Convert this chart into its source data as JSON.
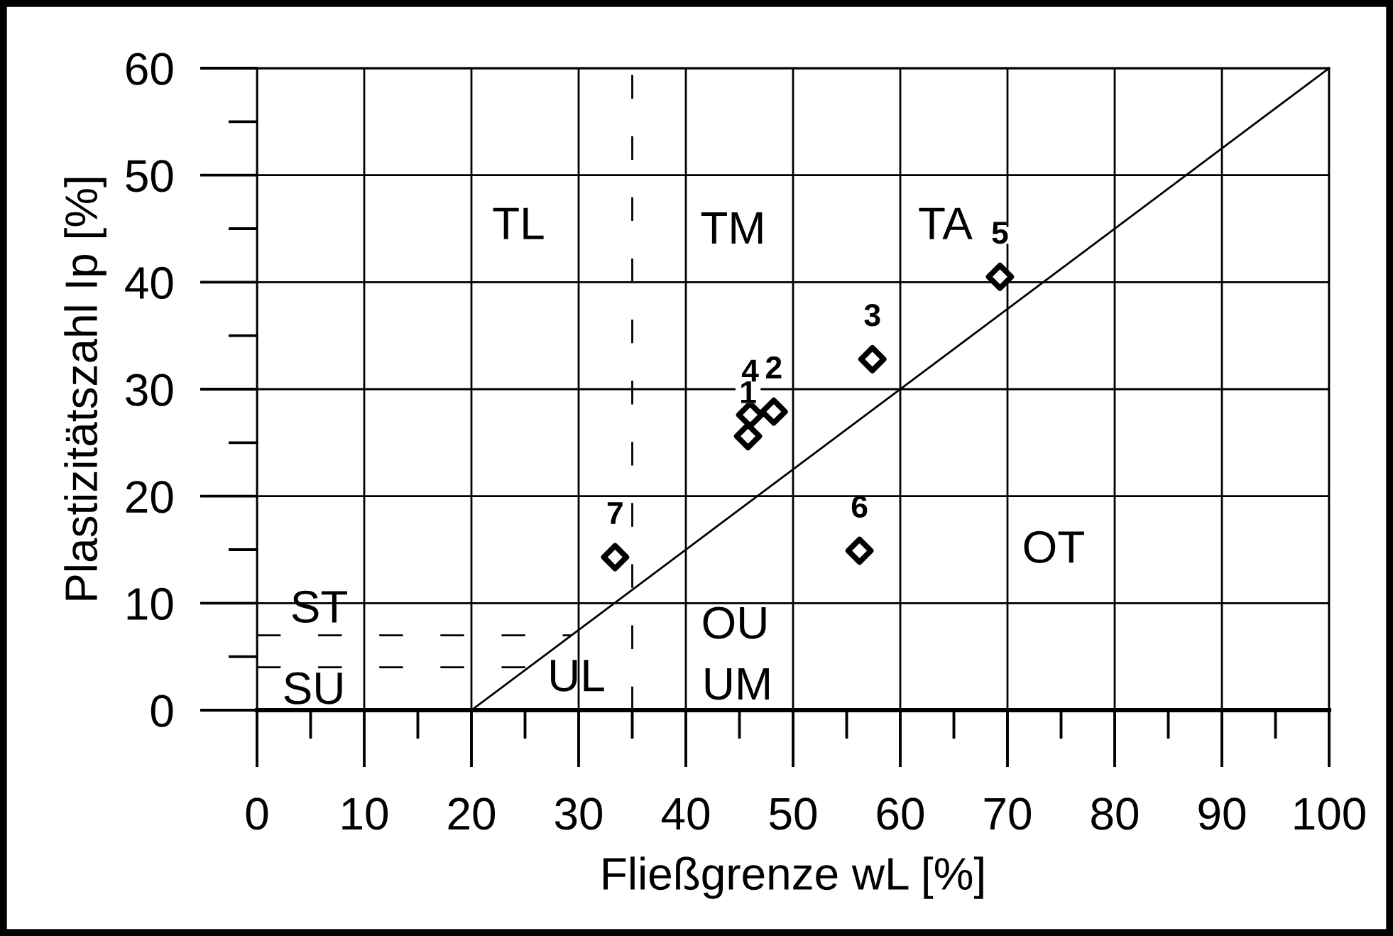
{
  "chart_data": {
    "type": "scatter",
    "xlabel": "Fließgrenze wL [%]",
    "ylabel": "Plastizitätszahl Ip [%]",
    "xlim": [
      0,
      100
    ],
    "ylim": [
      0,
      60
    ],
    "xticks": [
      0,
      10,
      20,
      30,
      40,
      50,
      60,
      70,
      80,
      90,
      100
    ],
    "yticks": [
      0,
      10,
      20,
      30,
      40,
      50,
      60
    ],
    "grid": true,
    "series": [
      {
        "color": "#000000",
        "marker": "diamond",
        "x": [
          45.8,
          48.2,
          57.4,
          46.0,
          69.3,
          56.2,
          33.4
        ],
        "values": [
          25.6,
          27.9,
          32.8,
          27.6,
          40.5,
          14.9,
          14.3
        ]
      },
      {
        "type": "line",
        "color": "#000000",
        "line_style": "solid",
        "x": [
          20,
          100
        ],
        "values": [
          0,
          60
        ]
      },
      {
        "type": "line",
        "color": "#000000",
        "line_style": "dashed",
        "x": [
          0,
          29.3
        ],
        "values": [
          7,
          7
        ]
      },
      {
        "type": "line",
        "color": "#000000",
        "line_style": "dashed",
        "x": [
          0,
          25.3
        ],
        "values": [
          4,
          4
        ]
      }
    ],
    "ref_lines": [
      {
        "axis": "x",
        "value": 35,
        "color": "#000000",
        "line_style": "dashed"
      }
    ],
    "annotations": [
      {
        "text": "1",
        "x": 45.8,
        "y": 25.6
      },
      {
        "text": "2",
        "x": 48.2,
        "y": 27.9
      },
      {
        "text": "3",
        "x": 57.4,
        "y": 32.8
      },
      {
        "text": "4",
        "x": 46.0,
        "y": 27.6
      },
      {
        "text": "5",
        "x": 69.3,
        "y": 40.5
      },
      {
        "text": "6",
        "x": 56.2,
        "y": 14.9
      },
      {
        "text": "7",
        "x": 33.4,
        "y": 14.3
      },
      "TL",
      "TM",
      "TA",
      "ST",
      "SU",
      "UL",
      "OU",
      "UM",
      "OT"
    ]
  }
}
